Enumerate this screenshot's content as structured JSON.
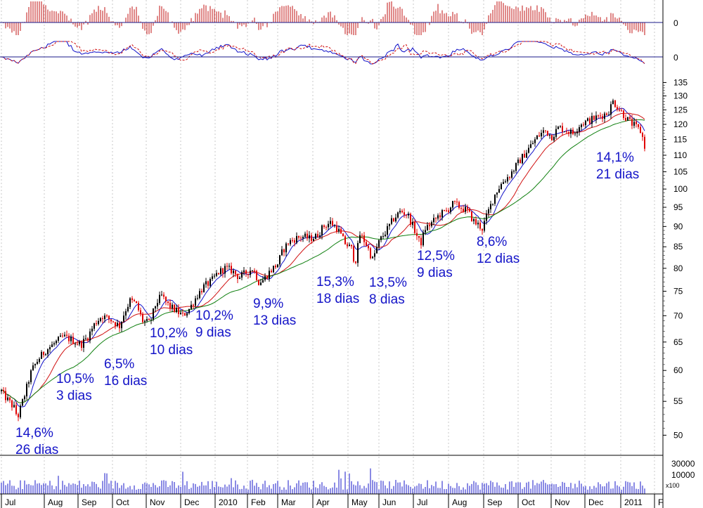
{
  "chart_data": {
    "type": "candlestick",
    "price_scale": "log",
    "ylim": [
      48,
      137
    ],
    "y_ticks": [
      50,
      55,
      60,
      65,
      70,
      75,
      80,
      85,
      90,
      95,
      100,
      105,
      110,
      115,
      120,
      125,
      130,
      135
    ],
    "x_ticks": [
      "Jul",
      "Aug",
      "Sep",
      "Oct",
      "Nov",
      "Dec",
      "2010",
      "Feb",
      "Mar",
      "Apr",
      "May",
      "Jun",
      "Jul",
      "Aug",
      "Sep",
      "Oct",
      "Nov",
      "Dec",
      "2011",
      "F"
    ],
    "price_path": [
      [
        0,
        57
      ],
      [
        5,
        56
      ],
      [
        20,
        54
      ],
      [
        25,
        52.5
      ],
      [
        35,
        56
      ],
      [
        45,
        60
      ],
      [
        55,
        62
      ],
      [
        65,
        63.5
      ],
      [
        80,
        65
      ],
      [
        90,
        66
      ],
      [
        100,
        65.5
      ],
      [
        115,
        64.5
      ],
      [
        125,
        66
      ],
      [
        135,
        68.5
      ],
      [
        145,
        70
      ],
      [
        160,
        69
      ],
      [
        170,
        68
      ],
      [
        178,
        71
      ],
      [
        185,
        73
      ],
      [
        193,
        72.5
      ],
      [
        203,
        69
      ],
      [
        213,
        68.5
      ],
      [
        222,
        72.5
      ],
      [
        230,
        74
      ],
      [
        240,
        72
      ],
      [
        250,
        71
      ],
      [
        260,
        70
      ],
      [
        270,
        71.5
      ],
      [
        280,
        74
      ],
      [
        290,
        76
      ],
      [
        300,
        77
      ],
      [
        310,
        79
      ],
      [
        320,
        80
      ],
      [
        330,
        79.5
      ],
      [
        340,
        78
      ],
      [
        350,
        79
      ],
      [
        360,
        80
      ],
      [
        368,
        77
      ],
      [
        375,
        77.5
      ],
      [
        385,
        79.5
      ],
      [
        395,
        81
      ],
      [
        402,
        84
      ],
      [
        410,
        86
      ],
      [
        420,
        87
      ],
      [
        430,
        87.5
      ],
      [
        440,
        87
      ],
      [
        450,
        87.5
      ],
      [
        460,
        90
      ],
      [
        470,
        91
      ],
      [
        480,
        89.5
      ],
      [
        490,
        86
      ],
      [
        500,
        84.5
      ],
      [
        505,
        81
      ],
      [
        512,
        88
      ],
      [
        520,
        86
      ],
      [
        530,
        82
      ],
      [
        540,
        86.5
      ],
      [
        550,
        89
      ],
      [
        560,
        92
      ],
      [
        570,
        94
      ],
      [
        580,
        93
      ],
      [
        590,
        89
      ],
      [
        598,
        85.5
      ],
      [
        605,
        89.5
      ],
      [
        615,
        91
      ],
      [
        625,
        93
      ],
      [
        635,
        94
      ],
      [
        645,
        96
      ],
      [
        655,
        95
      ],
      [
        665,
        94
      ],
      [
        675,
        91
      ],
      [
        680,
        90.5
      ],
      [
        686,
        89.5
      ],
      [
        695,
        94
      ],
      [
        705,
        99
      ],
      [
        715,
        102
      ],
      [
        725,
        104
      ],
      [
        735,
        107
      ],
      [
        745,
        110
      ],
      [
        755,
        113
      ],
      [
        765,
        116
      ],
      [
        775,
        118
      ],
      [
        785,
        116
      ],
      [
        795,
        119
      ],
      [
        805,
        118
      ],
      [
        815,
        117
      ],
      [
        825,
        120
      ],
      [
        835,
        121
      ],
      [
        845,
        122
      ],
      [
        855,
        123
      ],
      [
        865,
        124
      ],
      [
        872,
        128
      ],
      [
        880,
        125.5
      ],
      [
        888,
        123
      ],
      [
        895,
        121
      ],
      [
        905,
        119
      ],
      [
        912,
        117.5
      ],
      [
        918,
        112
      ]
    ],
    "annotations": [
      {
        "pct": "14,6%",
        "days": "26 dias"
      },
      {
        "pct": "10,5%",
        "days": "3 dias"
      },
      {
        "pct": "6,5%",
        "days": "16 dias"
      },
      {
        "pct": "10,2%",
        "days": "10 dias"
      },
      {
        "pct": "10,2%",
        "days": "9 dias"
      },
      {
        "pct": "9,9%",
        "days": "13 dias"
      },
      {
        "pct": "15,3%",
        "days": "18 dias"
      },
      {
        "pct": "13,5%",
        "days": "8 dias"
      },
      {
        "pct": "12,5%",
        "days": "9 dias"
      },
      {
        "pct": "8,6%",
        "days": "12 dias"
      },
      {
        "pct": "14,1%",
        "days": "21 dias"
      }
    ],
    "indicator_zero_label": "0",
    "volume_ticks": [
      "30000",
      "10000"
    ],
    "volume_unit": "x100",
    "series_colors": {
      "candle_up": "#000000",
      "candle_down": "#e00000",
      "ma_short": "#1010c8",
      "ma_mid": "#d01010",
      "ma_long": "#108010",
      "osc_bars": "#c01010",
      "osc_line_a": "#1010c8",
      "osc_line_b": "#d01010",
      "volume": "#1414c8"
    }
  }
}
